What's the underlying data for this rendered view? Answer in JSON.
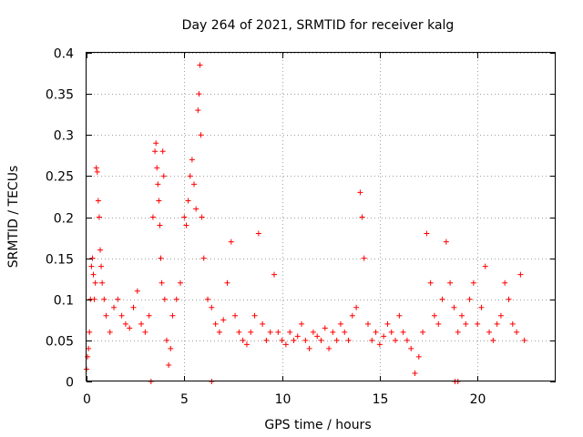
{
  "chart_data": {
    "type": "scatter",
    "title": "Day 264 of 2021, SRMTID for receiver kalg",
    "xlabel": "GPS time / hours",
    "ylabel": "SRMTID / TECUs",
    "xlim": [
      0,
      24
    ],
    "ylim": [
      0,
      0.4
    ],
    "x_ticks": [
      0,
      5,
      10,
      15,
      20
    ],
    "y_ticks": [
      0,
      0.05,
      0.1,
      0.15,
      0.2,
      0.25,
      0.3,
      0.35,
      0.4
    ],
    "x_tick_labels": [
      "0",
      "5",
      "10",
      "15",
      "20"
    ],
    "y_tick_labels": [
      "0",
      "0.05",
      "0.1",
      "0.15",
      "0.2",
      "0.25",
      "0.3",
      "0.35",
      "0.4"
    ],
    "grid": true,
    "marker": "+",
    "color": "#ff0000",
    "series": [
      {
        "name": "SRMTID",
        "points": [
          [
            0.0,
            0.015
          ],
          [
            0.05,
            0.03
          ],
          [
            0.1,
            0.04
          ],
          [
            0.15,
            0.06
          ],
          [
            0.2,
            0.1
          ],
          [
            0.25,
            0.14
          ],
          [
            0.3,
            0.15
          ],
          [
            0.35,
            0.13
          ],
          [
            0.4,
            0.1
          ],
          [
            0.45,
            0.12
          ],
          [
            0.5,
            0.26
          ],
          [
            0.55,
            0.255
          ],
          [
            0.6,
            0.22
          ],
          [
            0.65,
            0.2
          ],
          [
            0.7,
            0.16
          ],
          [
            0.75,
            0.14
          ],
          [
            0.8,
            0.12
          ],
          [
            0.9,
            0.1
          ],
          [
            1.0,
            0.08
          ],
          [
            1.2,
            0.06
          ],
          [
            1.4,
            0.09
          ],
          [
            1.6,
            0.1
          ],
          [
            1.8,
            0.08
          ],
          [
            2.0,
            0.07
          ],
          [
            2.2,
            0.065
          ],
          [
            2.4,
            0.09
          ],
          [
            2.6,
            0.11
          ],
          [
            2.8,
            0.07
          ],
          [
            3.0,
            0.06
          ],
          [
            3.2,
            0.08
          ],
          [
            3.4,
            0.2
          ],
          [
            3.5,
            0.28
          ],
          [
            3.55,
            0.29
          ],
          [
            3.6,
            0.26
          ],
          [
            3.65,
            0.24
          ],
          [
            3.7,
            0.22
          ],
          [
            3.75,
            0.19
          ],
          [
            3.8,
            0.15
          ],
          [
            3.85,
            0.12
          ],
          [
            3.9,
            0.28
          ],
          [
            3.95,
            0.25
          ],
          [
            4.0,
            0.1
          ],
          [
            4.1,
            0.05
          ],
          [
            4.2,
            0.02
          ],
          [
            4.3,
            0.04
          ],
          [
            4.4,
            0.08
          ],
          [
            4.6,
            0.1
          ],
          [
            4.8,
            0.12
          ],
          [
            5.0,
            0.2
          ],
          [
            5.1,
            0.19
          ],
          [
            5.2,
            0.22
          ],
          [
            5.3,
            0.25
          ],
          [
            5.4,
            0.27
          ],
          [
            5.5,
            0.24
          ],
          [
            5.6,
            0.21
          ],
          [
            5.7,
            0.33
          ],
          [
            5.75,
            0.35
          ],
          [
            5.8,
            0.385
          ],
          [
            5.85,
            0.3
          ],
          [
            5.9,
            0.2
          ],
          [
            6.0,
            0.15
          ],
          [
            6.2,
            0.1
          ],
          [
            6.4,
            0.09
          ],
          [
            6.6,
            0.07
          ],
          [
            6.8,
            0.06
          ],
          [
            7.0,
            0.075
          ],
          [
            7.2,
            0.12
          ],
          [
            7.4,
            0.17
          ],
          [
            7.6,
            0.08
          ],
          [
            7.8,
            0.06
          ],
          [
            8.0,
            0.05
          ],
          [
            8.2,
            0.045
          ],
          [
            8.4,
            0.06
          ],
          [
            8.6,
            0.08
          ],
          [
            8.8,
            0.18
          ],
          [
            9.0,
            0.07
          ],
          [
            9.2,
            0.05
          ],
          [
            9.4,
            0.06
          ],
          [
            9.6,
            0.13
          ],
          [
            9.8,
            0.06
          ],
          [
            10.0,
            0.05
          ],
          [
            10.2,
            0.045
          ],
          [
            10.4,
            0.06
          ],
          [
            10.6,
            0.05
          ],
          [
            10.8,
            0.055
          ],
          [
            11.0,
            0.07
          ],
          [
            11.2,
            0.05
          ],
          [
            11.4,
            0.04
          ],
          [
            11.6,
            0.06
          ],
          [
            11.8,
            0.055
          ],
          [
            12.0,
            0.05
          ],
          [
            12.2,
            0.065
          ],
          [
            12.4,
            0.04
          ],
          [
            12.6,
            0.06
          ],
          [
            12.8,
            0.05
          ],
          [
            13.0,
            0.07
          ],
          [
            13.2,
            0.06
          ],
          [
            13.4,
            0.05
          ],
          [
            13.6,
            0.08
          ],
          [
            13.8,
            0.09
          ],
          [
            14.0,
            0.23
          ],
          [
            14.1,
            0.2
          ],
          [
            14.2,
            0.15
          ],
          [
            14.4,
            0.07
          ],
          [
            14.6,
            0.05
          ],
          [
            14.8,
            0.06
          ],
          [
            15.0,
            0.045
          ],
          [
            15.2,
            0.055
          ],
          [
            15.4,
            0.07
          ],
          [
            15.6,
            0.06
          ],
          [
            15.8,
            0.05
          ],
          [
            16.0,
            0.08
          ],
          [
            16.2,
            0.06
          ],
          [
            16.4,
            0.05
          ],
          [
            16.6,
            0.04
          ],
          [
            16.8,
            0.01
          ],
          [
            17.0,
            0.03
          ],
          [
            17.2,
            0.06
          ],
          [
            17.4,
            0.18
          ],
          [
            17.6,
            0.12
          ],
          [
            17.8,
            0.08
          ],
          [
            18.0,
            0.07
          ],
          [
            18.2,
            0.1
          ],
          [
            18.4,
            0.17
          ],
          [
            18.6,
            0.12
          ],
          [
            18.8,
            0.09
          ],
          [
            19.0,
            0.06
          ],
          [
            19.2,
            0.08
          ],
          [
            19.4,
            0.07
          ],
          [
            19.6,
            0.1
          ],
          [
            19.8,
            0.12
          ],
          [
            20.0,
            0.07
          ],
          [
            20.2,
            0.09
          ],
          [
            20.4,
            0.14
          ],
          [
            20.6,
            0.06
          ],
          [
            20.8,
            0.05
          ],
          [
            21.0,
            0.07
          ],
          [
            21.2,
            0.08
          ],
          [
            21.4,
            0.12
          ],
          [
            21.6,
            0.1
          ],
          [
            21.8,
            0.07
          ],
          [
            22.0,
            0.06
          ],
          [
            22.2,
            0.13
          ],
          [
            22.4,
            0.05
          ]
        ],
        "zero_points": [
          3.3,
          6.4,
          18.85,
          19.0
        ]
      }
    ]
  }
}
